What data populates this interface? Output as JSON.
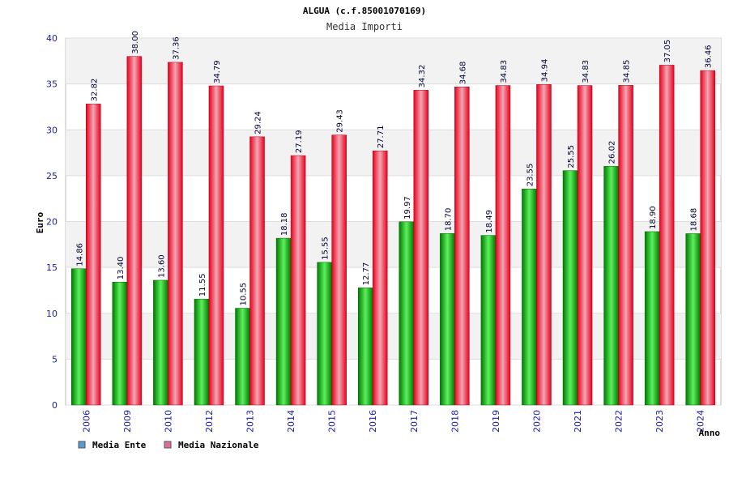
{
  "chart_data": {
    "type": "bar",
    "title": "ALGUA (c.f.85001070169)",
    "subtitle": "Media Importi",
    "ylabel": "Euro",
    "xlabel": "Anno",
    "ylim": [
      0,
      40
    ],
    "yticks": [
      0,
      5,
      10,
      15,
      20,
      25,
      30,
      35,
      40
    ],
    "categories": [
      "2006",
      "2009",
      "2010",
      "2012",
      "2013",
      "2014",
      "2015",
      "2016",
      "2017",
      "2018",
      "2019",
      "2020",
      "2021",
      "2022",
      "2023",
      "2024"
    ],
    "series": [
      {
        "name": "Media Ente",
        "color": "#00b000",
        "legend_color": "#5b9bd5",
        "values": [
          14.86,
          13.4,
          13.6,
          11.55,
          10.55,
          18.18,
          15.55,
          12.77,
          19.97,
          18.7,
          18.49,
          23.55,
          25.55,
          26.02,
          18.9,
          18.68
        ],
        "labels": [
          "14.86",
          "13.40",
          "13.60",
          "11.55",
          "10.55",
          "18.18",
          "15.55",
          "12.77",
          "19.97",
          "18.70",
          "18.49",
          "23.55",
          "25.55",
          "26.02",
          "18.90",
          "18.68"
        ]
      },
      {
        "name": "Media Nazionale",
        "color": "#e8001c",
        "legend_color": "#e06c9a",
        "values": [
          32.82,
          38.0,
          37.36,
          34.79,
          29.24,
          27.19,
          29.43,
          27.71,
          34.32,
          34.68,
          34.83,
          34.94,
          34.83,
          34.85,
          37.05,
          36.46
        ],
        "labels": [
          "32.82",
          "38.00",
          "37.36",
          "34.79",
          "29.24",
          "27.19",
          "29.43",
          "27.71",
          "34.32",
          "34.68",
          "34.83",
          "34.94",
          "34.83",
          "34.85",
          "37.05",
          "36.46"
        ]
      }
    ],
    "grid": true,
    "legend_position": "bottom-left"
  }
}
